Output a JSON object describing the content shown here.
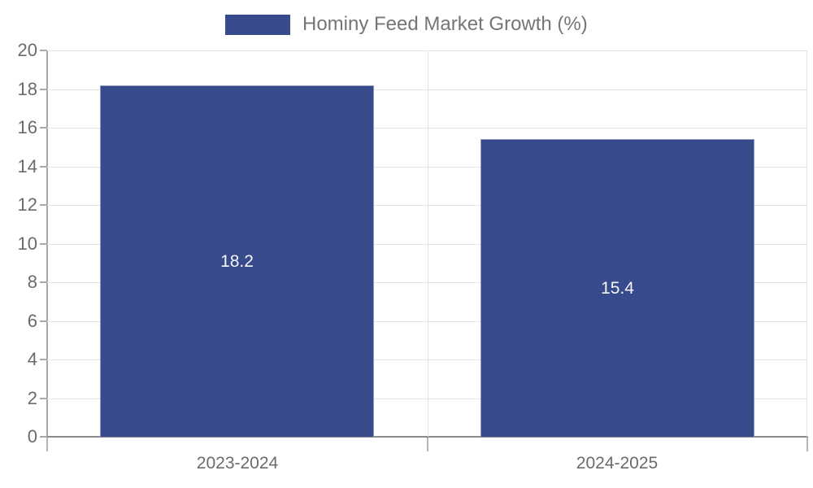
{
  "legend": {
    "label": "Hominy Feed Market Growth (%)"
  },
  "chart_data": {
    "type": "bar",
    "title": "",
    "categories": [
      "2023-2024",
      "2024-2025"
    ],
    "values": [
      18.2,
      15.4
    ],
    "value_labels": [
      "18.2",
      "15.4"
    ],
    "legend": [
      "Hominy Feed Market Growth (%)"
    ],
    "legend_position": "top",
    "xlabel": "",
    "ylabel": "",
    "ylim": [
      0,
      20
    ],
    "ytick_step": 2,
    "yticks": [
      0,
      2,
      4,
      6,
      8,
      10,
      12,
      14,
      16,
      18,
      20
    ],
    "grid": true,
    "bar_color": "#364a8c",
    "value_label_color": "#f5f5f8",
    "grid_color": "#e4e4e4",
    "tick_label_color": "#6b6b6b",
    "legend_text_color": "#757575"
  }
}
